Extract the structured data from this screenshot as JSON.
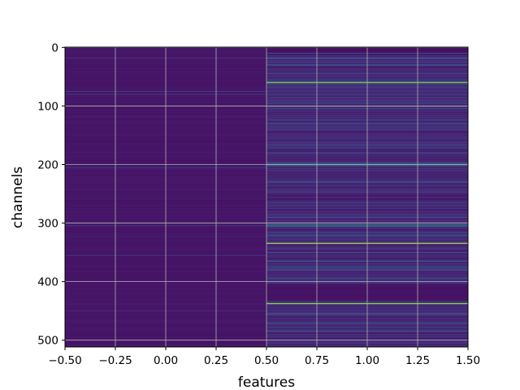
{
  "chart_data": {
    "type": "heatmap",
    "title": "",
    "xlabel": "features",
    "ylabel": "channels",
    "xlim": [
      -0.5,
      1.5
    ],
    "ylim": [
      511.5,
      -0.5
    ],
    "xticks": [
      -0.5,
      -0.25,
      0.0,
      0.25,
      0.5,
      0.75,
      1.0,
      1.25,
      1.5
    ],
    "xtick_labels": [
      "−0.50",
      "−0.25",
      "0.00",
      "0.25",
      "0.50",
      "0.75",
      "1.00",
      "1.25",
      "1.50"
    ],
    "yticks": [
      0,
      100,
      200,
      300,
      400,
      500
    ],
    "ytick_labels": [
      "0",
      "100",
      "200",
      "300",
      "400",
      "500"
    ],
    "grid": true,
    "colormap": "viridis",
    "n_channels": 512,
    "n_features": 2,
    "columns": [
      {
        "feature": 0,
        "base_value": 0.06,
        "noise": 0.035,
        "highlights": [
          {
            "channel": 18,
            "value": 0.2
          },
          {
            "channel": 75,
            "value": 0.25
          },
          {
            "channel": 80,
            "value": 0.22
          },
          {
            "channel": 205,
            "value": 0.22
          },
          {
            "channel": 304,
            "value": 0.2
          },
          {
            "channel": 355,
            "value": 0.2
          },
          {
            "channel": 400,
            "value": 0.2
          },
          {
            "channel": 450,
            "value": 0.18
          }
        ]
      },
      {
        "feature": 1,
        "base_value": 0.08,
        "noise": 0.12,
        "highlights": [
          {
            "channel": 10,
            "value": 0.35
          },
          {
            "channel": 18,
            "value": 0.45
          },
          {
            "channel": 30,
            "value": 0.4
          },
          {
            "channel": 45,
            "value": 0.3
          },
          {
            "channel": 58,
            "value": 0.55
          },
          {
            "channel": 60,
            "value": 0.92
          },
          {
            "channel": 62,
            "value": 0.5
          },
          {
            "channel": 95,
            "value": 0.35
          },
          {
            "channel": 105,
            "value": 0.3
          },
          {
            "channel": 130,
            "value": 0.4
          },
          {
            "channel": 180,
            "value": 0.35
          },
          {
            "channel": 198,
            "value": 0.55
          },
          {
            "channel": 200,
            "value": 0.62
          },
          {
            "channel": 202,
            "value": 0.5
          },
          {
            "channel": 230,
            "value": 0.35
          },
          {
            "channel": 270,
            "value": 0.35
          },
          {
            "channel": 290,
            "value": 0.4
          },
          {
            "channel": 303,
            "value": 0.5
          },
          {
            "channel": 305,
            "value": 0.6
          },
          {
            "channel": 320,
            "value": 0.35
          },
          {
            "channel": 334,
            "value": 0.7
          },
          {
            "channel": 335,
            "value": 0.95
          },
          {
            "channel": 350,
            "value": 0.4
          },
          {
            "channel": 365,
            "value": 0.35
          },
          {
            "channel": 380,
            "value": 0.35
          },
          {
            "channel": 395,
            "value": 0.3
          },
          {
            "channel": 437,
            "value": 0.85
          },
          {
            "channel": 438,
            "value": 0.75
          },
          {
            "channel": 455,
            "value": 0.45
          },
          {
            "channel": 470,
            "value": 0.4
          },
          {
            "channel": 485,
            "value": 0.45
          },
          {
            "channel": 500,
            "value": 0.4
          }
        ],
        "dark_bands": [
          [
            0,
            12
          ],
          [
            405,
            432
          ]
        ]
      }
    ]
  }
}
